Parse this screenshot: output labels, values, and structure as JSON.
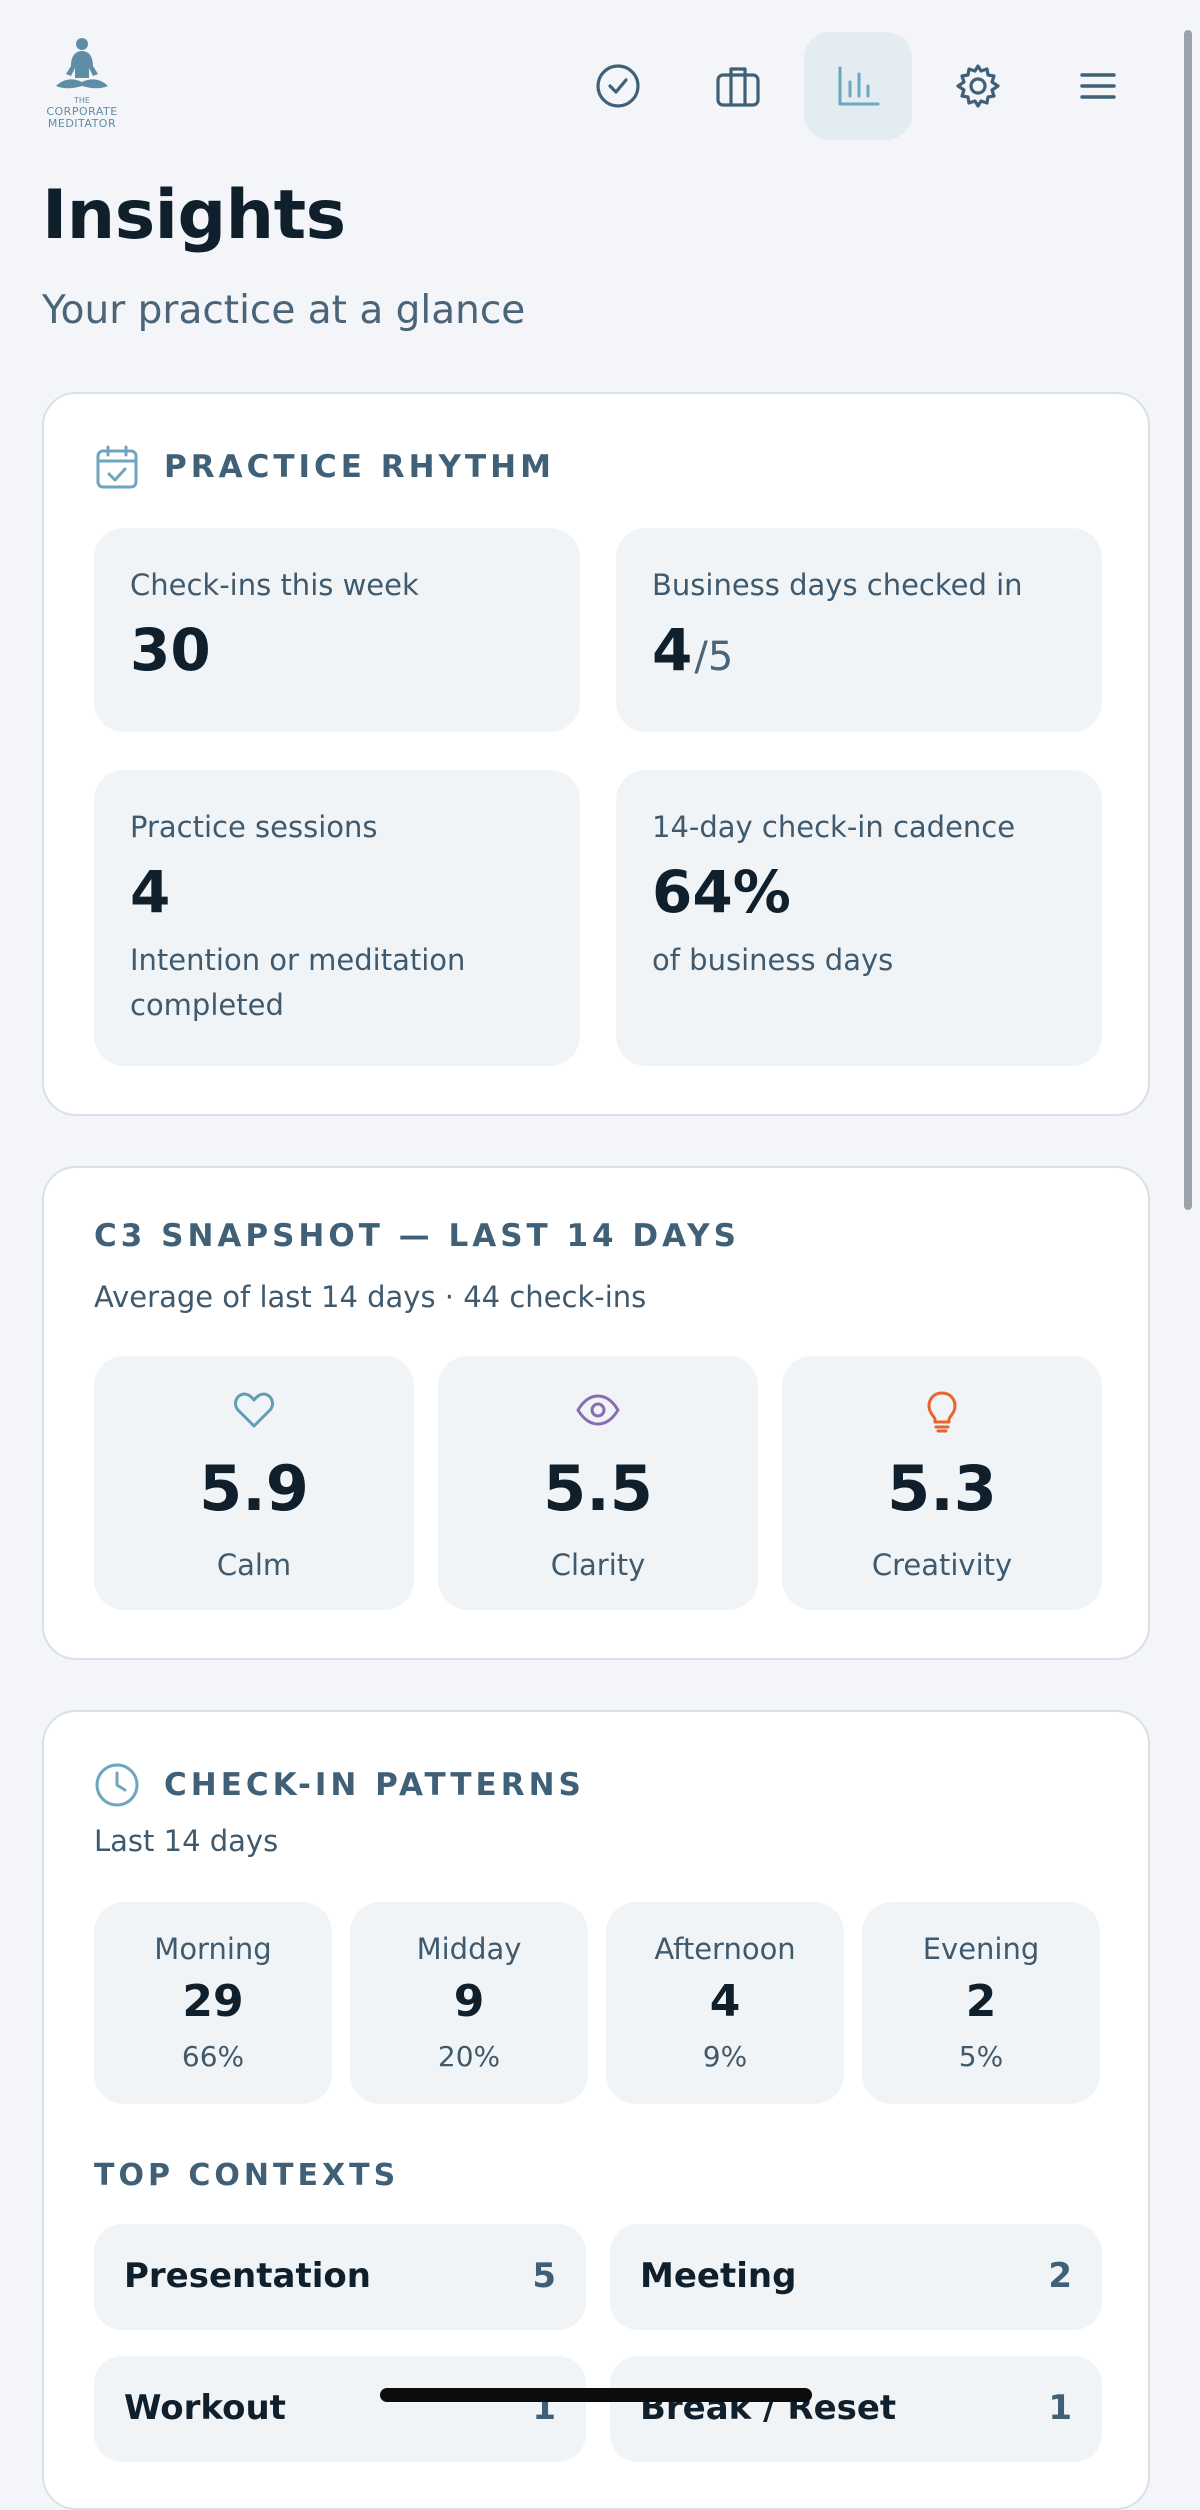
{
  "header": {
    "logo": {
      "line0": "THE",
      "line1": "CORPORATE",
      "line2": "MEDITATOR"
    },
    "nav": [
      {
        "icon": "check-circle-icon",
        "active": false
      },
      {
        "icon": "briefcase-icon",
        "active": false
      },
      {
        "icon": "bar-chart-icon",
        "active": true
      },
      {
        "icon": "gear-icon",
        "active": false
      },
      {
        "icon": "menu-icon",
        "active": false
      }
    ]
  },
  "page": {
    "title": "Insights",
    "subtitle": "Your practice at a glance"
  },
  "practice_rhythm": {
    "heading": "PRACTICE RHYTHM",
    "icon": "calendar-check-icon",
    "stats": [
      {
        "label": "Check-ins this week",
        "value": "30"
      },
      {
        "label": "Business days checked in",
        "value": "4",
        "denominator": "/5"
      },
      {
        "label": "Practice sessions",
        "value": "4",
        "sub": "Intention or meditation completed"
      },
      {
        "label": "14-day check-in cadence",
        "value": "64%",
        "sub": "of business days"
      }
    ]
  },
  "c3_snapshot": {
    "heading": "C3 SNAPSHOT — LAST 14 DAYS",
    "subheading": "Average of last 14 days · 44 check-ins",
    "metrics": [
      {
        "label": "Calm",
        "value": "5.9",
        "icon": "heart-icon",
        "color": "#5f9fb3"
      },
      {
        "label": "Clarity",
        "value": "5.5",
        "icon": "eye-icon",
        "color": "#8a6cb2"
      },
      {
        "label": "Creativity",
        "value": "5.3",
        "icon": "lightbulb-icon",
        "color": "#e8642b"
      }
    ]
  },
  "checkin_patterns": {
    "heading": "CHECK-IN PATTERNS",
    "icon": "clock-icon",
    "subheading": "Last 14 days",
    "periods": [
      {
        "name": "Morning",
        "count": "29",
        "percent": "66%"
      },
      {
        "name": "Midday",
        "count": "9",
        "percent": "20%"
      },
      {
        "name": "Afternoon",
        "count": "4",
        "percent": "9%"
      },
      {
        "name": "Evening",
        "count": "2",
        "percent": "5%"
      }
    ],
    "top_contexts_heading": "TOP CONTEXTS",
    "contexts": [
      {
        "name": "Presentation",
        "count": "5"
      },
      {
        "name": "Meeting",
        "count": "2"
      },
      {
        "name": "Workout",
        "count": "1"
      },
      {
        "name": "Break / Reset",
        "count": "1"
      }
    ]
  },
  "colors": {
    "accent": "#5e8da6",
    "heading": "#3f6077",
    "tile": "#f1f4f7",
    "active_nav": "#e2ecf1"
  }
}
